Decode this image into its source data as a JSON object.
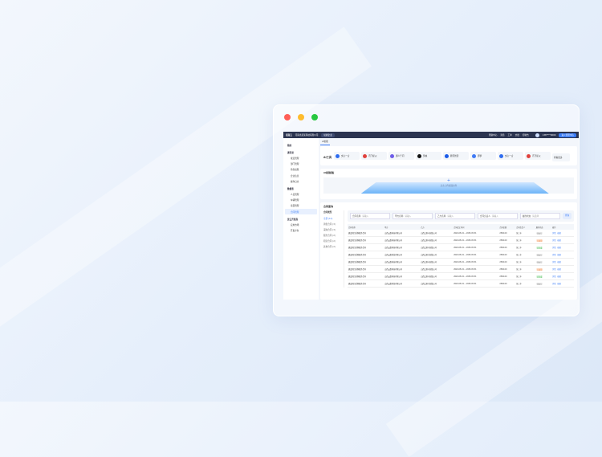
{
  "colors": {
    "red": "#ff5f57",
    "yellow": "#febc2e",
    "green": "#28c840",
    "accent": "#3b7cf6",
    "header": "#2b3450"
  },
  "header": {
    "logo": "招商云",
    "company": "河南省某某科技有限公司",
    "badge": "切换企业",
    "nav": [
      "帮助中心",
      "消息",
      "工单",
      "文档",
      "控制台"
    ],
    "user": "138****0000",
    "action": "进入管理中心"
  },
  "sidebar": [
    {
      "label": "我的",
      "group": true
    },
    {
      "label": "通讯录",
      "group": true
    },
    {
      "label": "成员管理"
    },
    {
      "label": "部门管理"
    },
    {
      "label": "角色权限"
    },
    {
      "label": "企业信息"
    },
    {
      "label": "操作日志"
    },
    {
      "label": "数据表",
      "group": true
    },
    {
      "label": "人员管理"
    },
    {
      "label": "车辆管理"
    },
    {
      "label": "项目管理"
    },
    {
      "label": "合同管理",
      "active": true
    },
    {
      "label": "景云开发商",
      "group": true
    },
    {
      "label": "应用市场"
    },
    {
      "label": "开发平台"
    }
  ],
  "tab": "AI智能",
  "ai_tools": {
    "title": "AI工具",
    "items": [
      {
        "label": "文心一言",
        "color": "#2e6cf0"
      },
      {
        "label": "讯飞星火",
        "color": "#e0413c"
      },
      {
        "label": "通义千问",
        "color": "#6d5ce8"
      },
      {
        "label": "剪映",
        "color": "#111111"
      },
      {
        "label": "腾讯智影",
        "color": "#1a5ae8"
      },
      {
        "label": "即梦",
        "color": "#3f7af5"
      },
      {
        "label": "文心一言",
        "color": "#2e6cf0"
      },
      {
        "label": "讯飞星火",
        "color": "#e0413c"
      }
    ],
    "more": "查看更多"
  },
  "ai_video": {
    "title": "AI视频模板",
    "upload": "点击上传视频文件"
  },
  "contracts": {
    "title": "合同查询",
    "types_title": "合同类型",
    "types": [
      "全部 (12)",
      "销售合同 (3)",
      "采购合同 (3)",
      "服务合同 (2)",
      "租赁合同 (2)",
      "其他合同 (2)"
    ],
    "filters": [
      {
        "label": "合同名称",
        "ph": "请输入"
      },
      {
        "label": "甲方名称",
        "ph": "请输入"
      },
      {
        "label": "乙方名称",
        "ph": "请输入"
      },
      {
        "label": "合同负责人",
        "ph": "请输入"
      },
      {
        "label": "履约状态",
        "ph": "请选择"
      }
    ],
    "search": "查询",
    "columns": [
      "合同名称",
      "甲方",
      "乙方",
      "合同起止时间",
      "合同金额",
      "合同负责人",
      "履约状态",
      "操作"
    ],
    "rows": [
      [
        "建设项目采购服务合同",
        "山西云数科技有限公司",
        "山西太原市创维公司",
        "2024.05.24 ~ 2025.05.31",
        "2500.00",
        "张三丰",
        "待执行"
      ],
      [
        "建设项目采购服务合同",
        "山西云数科技有限公司",
        "山西太原市创维公司",
        "2024.05.24 ~ 2025.05.31",
        "2500.00",
        "张三丰",
        "已逾期"
      ],
      [
        "建设项目采购服务合同",
        "山西云数科技有限公司",
        "山西太原市创维公司",
        "2024.05.24 ~ 2025.05.31",
        "2500.00",
        "张三丰",
        "已完成"
      ],
      [
        "建设项目采购服务合同",
        "山西云数科技有限公司",
        "山西太原市创维公司",
        "2024.05.24 ~ 2025.05.31",
        "2500.00",
        "张三丰",
        "待执行"
      ],
      [
        "建设项目采购服务合同",
        "山西云数科技有限公司",
        "山西太原市创维公司",
        "2024.05.24 ~ 2025.05.31",
        "2500.00",
        "张三丰",
        "待执行"
      ],
      [
        "建设项目采购服务合同",
        "山西云数科技有限公司",
        "山西太原市创维公司",
        "2024.05.24 ~ 2025.05.31",
        "2500.00",
        "张三丰",
        "已逾期"
      ],
      [
        "建设项目采购服务合同",
        "山西云数科技有限公司",
        "山西太原市创维公司",
        "2024.05.24 ~ 2025.05.31",
        "2500.00",
        "张三丰",
        "已完成"
      ],
      [
        "建设项目采购服务合同",
        "山西云数科技有限公司",
        "山西太原市创维公司",
        "2024.05.24 ~ 2025.05.31",
        "2500.00",
        "张三丰",
        "待执行"
      ]
    ],
    "actions": [
      "详情",
      "编辑"
    ]
  }
}
